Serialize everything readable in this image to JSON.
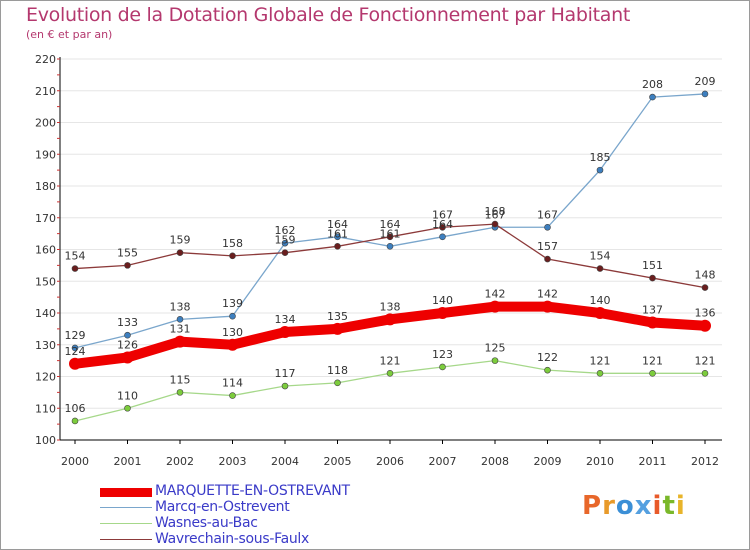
{
  "title": "Evolution de la Dotation Globale de Fonctionnement par Habitant",
  "subtitle": "(en € et par an)",
  "logo_text": [
    "P",
    "r",
    "o",
    "x",
    "i",
    "t",
    "i"
  ],
  "logo_colors": [
    "#e8672a",
    "#e89a2a",
    "#3b8fd6",
    "#55a0e0",
    "#e85a2a",
    "#7ab82a",
    "#e8b42a"
  ],
  "chart_data": {
    "type": "line",
    "title": "Evolution de la Dotation Globale de Fonctionnement par Habitant",
    "ylabel": "(en € et par an)",
    "x": [
      "2000",
      "2001",
      "2002",
      "2003",
      "2004",
      "2005",
      "2006",
      "2007",
      "2008",
      "2009",
      "2010",
      "2011",
      "2012"
    ],
    "ylim": [
      100,
      220
    ],
    "yticks": [
      "100",
      "110",
      "120",
      "130",
      "140",
      "150",
      "160",
      "170",
      "180",
      "190",
      "200",
      "210",
      "220"
    ],
    "series": [
      {
        "name": "MARQUETTE-EN-OSTREVANT",
        "color": "#ee0000",
        "marker": "#ee0000",
        "width": 10,
        "values": [
          124,
          126,
          131,
          130,
          134,
          135,
          138,
          140,
          142,
          142,
          140,
          137,
          136
        ]
      },
      {
        "name": "Marcq-en-Ostrevent",
        "color": "#7aa6cc",
        "marker": "#3d7fbf",
        "width": 1.3,
        "values": [
          129,
          133,
          138,
          139,
          162,
          164,
          161,
          164,
          167,
          167,
          185,
          208,
          209
        ]
      },
      {
        "name": "Wasnes-au-Bac",
        "color": "#a6d88a",
        "marker": "#7ccc3c",
        "width": 1.3,
        "values": [
          106,
          110,
          115,
          114,
          117,
          118,
          121,
          123,
          125,
          122,
          121,
          121,
          121
        ]
      },
      {
        "name": "Wavrechain-sous-Faulx",
        "color": "#8c3a3a",
        "marker": "#6a1e1e",
        "width": 1.3,
        "values": [
          154,
          155,
          159,
          158,
          159,
          161,
          164,
          167,
          168,
          157,
          154,
          151,
          148
        ]
      }
    ],
    "labels": [
      {
        "values": [
          "124",
          "126",
          "131",
          "130",
          "134",
          "135",
          "138",
          "140",
          "142",
          "142",
          "140",
          "137",
          "136"
        ]
      },
      {
        "values": [
          "129",
          "133",
          "138",
          "139",
          "162",
          "164",
          "161",
          "164",
          "167",
          "167",
          "185",
          "208",
          "209"
        ]
      },
      {
        "values": [
          "106",
          "110",
          "115",
          "114",
          "117",
          "118",
          "121",
          "123",
          "125",
          "122",
          "121",
          "121",
          "121"
        ]
      },
      {
        "values": [
          "154",
          "155",
          "159",
          "158",
          "159",
          "161",
          "164",
          "167",
          "168",
          "157",
          "154",
          "151",
          "148"
        ]
      }
    ]
  }
}
